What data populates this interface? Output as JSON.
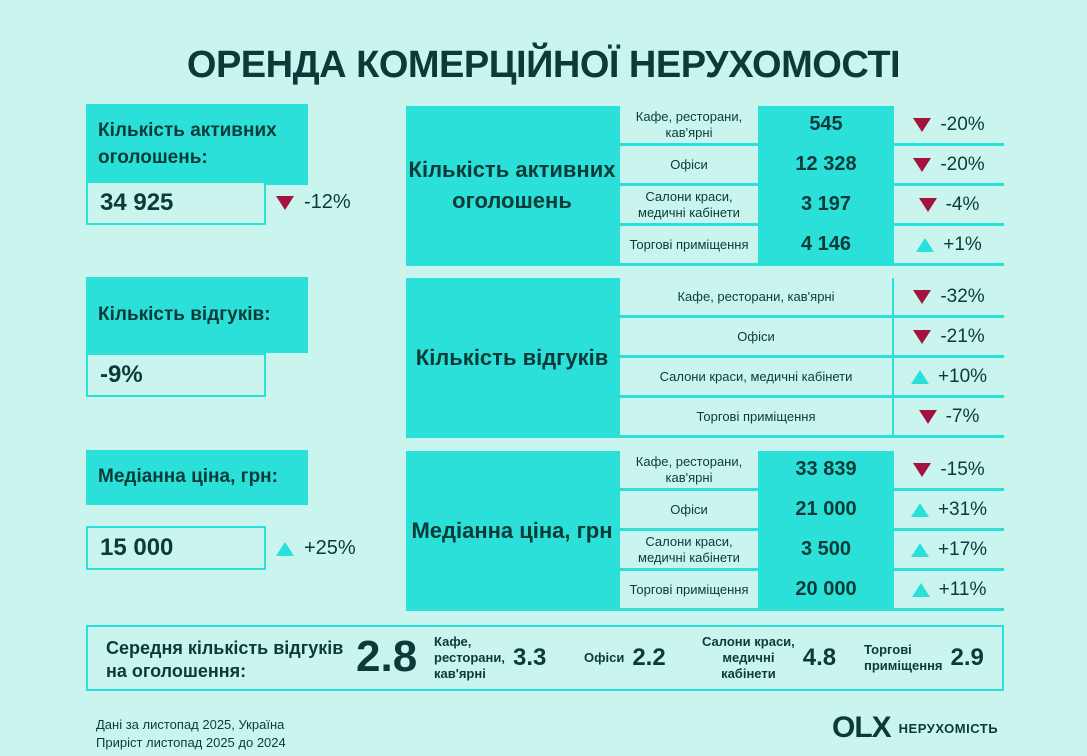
{
  "title": "ОРЕНДА КОМЕРЦІЙНОЇ НЕРУХОМОСТІ",
  "summary": [
    {
      "label": "Кількість активних оголошень:",
      "value": "34 925",
      "change": "-12%",
      "direction": "down"
    },
    {
      "label": "Кількість відгуків:",
      "value": "-9%"
    },
    {
      "label": "Медіанна ціна, грн:",
      "value": "15 000",
      "change": "+25%",
      "direction": "up"
    }
  ],
  "tables": {
    "listings": {
      "title": "Кількість активних оголошень",
      "rows": [
        {
          "category": "Кафе, ресторани, кав'ярні",
          "value": "545",
          "change": "-20%",
          "direction": "down"
        },
        {
          "category": "Офіси",
          "value": "12 328",
          "change": "-20%",
          "direction": "down"
        },
        {
          "category": "Салони краси, медичні кабінети",
          "value": "3 197",
          "change": "-4%",
          "direction": "down"
        },
        {
          "category": "Торгові приміщення",
          "value": "4 146",
          "change": "+1%",
          "direction": "up"
        }
      ]
    },
    "responses": {
      "title": "Кількість відгуків",
      "rows": [
        {
          "category": "Кафе, ресторани, кав'ярні",
          "change": "-32%",
          "direction": "down"
        },
        {
          "category": "Офіси",
          "change": "-21%",
          "direction": "down"
        },
        {
          "category": "Салони краси, медичні кабінети",
          "change": "+10%",
          "direction": "up"
        },
        {
          "category": "Торгові приміщення",
          "change": "-7%",
          "direction": "down"
        }
      ]
    },
    "price": {
      "title": "Медіанна ціна, грн",
      "rows": [
        {
          "category": "Кафе, ресторани, кав'ярні",
          "value": "33 839",
          "change": "-15%",
          "direction": "down"
        },
        {
          "category": "Офіси",
          "value": "21 000",
          "change": "+31%",
          "direction": "up"
        },
        {
          "category": "Салони краси, медичні кабінети",
          "value": "3 500",
          "change": "+17%",
          "direction": "up"
        },
        {
          "category": "Торгові приміщення",
          "value": "20 000",
          "change": "+11%",
          "direction": "up"
        }
      ]
    }
  },
  "average": {
    "label_line1": "Середня кількість відгуків",
    "label_line2": "на оголошення:",
    "value": "2.8",
    "items": [
      {
        "category_lines": [
          "Кафе,",
          "ресторани,",
          "кав'ярні"
        ],
        "value": "3.3"
      },
      {
        "category_lines": [
          "Офіси"
        ],
        "value": "2.2"
      },
      {
        "category_lines": [
          "Салони краси,",
          "медичні",
          "кабінети"
        ],
        "value": "4.8"
      },
      {
        "category_lines": [
          "Торгові",
          "приміщення"
        ],
        "value": "2.9"
      }
    ]
  },
  "footer": {
    "line1": "Дані за листопад 2025, Україна",
    "line2": "Приріст листопад 2025 до 2024"
  },
  "logo": {
    "mark": "OLX",
    "text": "НЕРУХОМІСТЬ"
  },
  "colors": {
    "accent": "#2ae0d8",
    "background": "#c9f5ee",
    "text": "#0b3b38",
    "down": "#a3133e"
  }
}
